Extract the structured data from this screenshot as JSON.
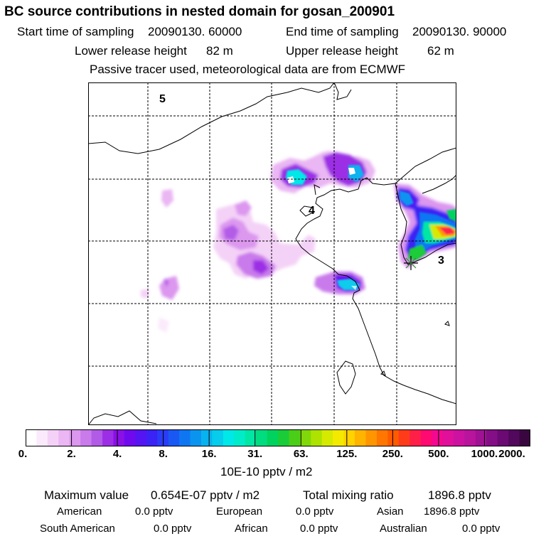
{
  "header": {
    "title": "BC  source contributions in nested domain for gosan_200901",
    "start_label": "Start time of sampling",
    "start_value": "20090130. 60000",
    "end_label": "End time of sampling",
    "end_value": "20090130. 90000",
    "lower_label": "Lower release height",
    "lower_value": "82 m",
    "upper_label": "Upper release height",
    "upper_value": "62 m",
    "tracer_note": "Passive tracer used, meteorological data are from ECMWF"
  },
  "map": {
    "markers": [
      "5",
      "4",
      "3"
    ]
  },
  "colorbar": {
    "ticks": [
      "0.",
      "2.",
      "4.",
      "8.",
      "16.",
      "31.",
      "63.",
      "125.",
      "250.",
      "500.",
      "1000.",
      "2000."
    ],
    "unit": "10E-10 pptv / m2",
    "colors": [
      "#ffffff",
      "#fbeafb",
      "#f4d2f7",
      "#eab6f3",
      "#dc97ef",
      "#c97aeb",
      "#b25be7",
      "#9c2fe5",
      "#8a10e6",
      "#6f0aee",
      "#5515f3",
      "#3b23f5",
      "#2a3cf5",
      "#1a58f4",
      "#0f76f2",
      "#0a94ef",
      "#08b2ee",
      "#07ccec",
      "#00e8e8",
      "#00ecc8",
      "#00e6a4",
      "#00dc80",
      "#00d25e",
      "#1acc38",
      "#4ace18",
      "#80d80a",
      "#aee200",
      "#d6ea00",
      "#f3ea00",
      "#ffd200",
      "#ffb400",
      "#ff9600",
      "#ff7600",
      "#ff5a00",
      "#ff3c1a",
      "#ff2048",
      "#ff0a70",
      "#f40890",
      "#e0109a",
      "#cc12a0",
      "#b8149c",
      "#a01294",
      "#840e86",
      "#6a0a72",
      "#52085c",
      "#3a0640"
    ]
  },
  "stats": {
    "max_label": "Maximum value",
    "max_value": "0.654E-07 pptv / m2",
    "total_label": "Total mixing ratio",
    "total_value": "1896.8 pptv",
    "american_label": "American",
    "american_value": "0.0 pptv",
    "european_label": "European",
    "european_value": "0.0 pptv",
    "asian_label": "Asian",
    "asian_value": "1896.8 pptv",
    "south_american_label": "South American",
    "south_american_value": "0.0 pptv",
    "african_label": "African",
    "african_value": "0.0 pptv",
    "australian_label": "Australian",
    "australian_value": "0.0 pptv"
  }
}
